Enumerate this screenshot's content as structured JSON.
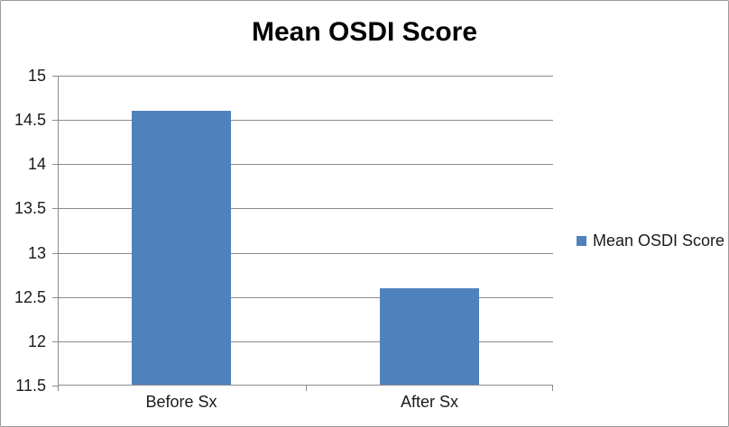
{
  "chart_data": {
    "type": "bar",
    "title": "Mean OSDI Score",
    "categories": [
      "Before Sx",
      "After Sx"
    ],
    "series": [
      {
        "name": "Mean OSDI Score",
        "values": [
          14.6,
          12.6
        ],
        "color": "#4F81BD"
      }
    ],
    "xlabel": "",
    "ylabel": "",
    "ylim": [
      11.5,
      15
    ],
    "ytick_step": 0.5,
    "ytick_labels": [
      "15",
      "14.5",
      "14",
      "13.5",
      "13",
      "12.5",
      "12",
      "11.5"
    ],
    "grid": true,
    "legend": {
      "position": "right",
      "label": "Mean OSDI Score",
      "swatch_color": "#4F81BD"
    },
    "colors": {
      "bar": "#4F81BD",
      "gridline": "#8A8A8A",
      "axis_line": "#8A8A8A",
      "text": "#1A1A1A",
      "title": "#000000",
      "border": "#9B9B9B",
      "background": "#FFFFFF"
    }
  }
}
